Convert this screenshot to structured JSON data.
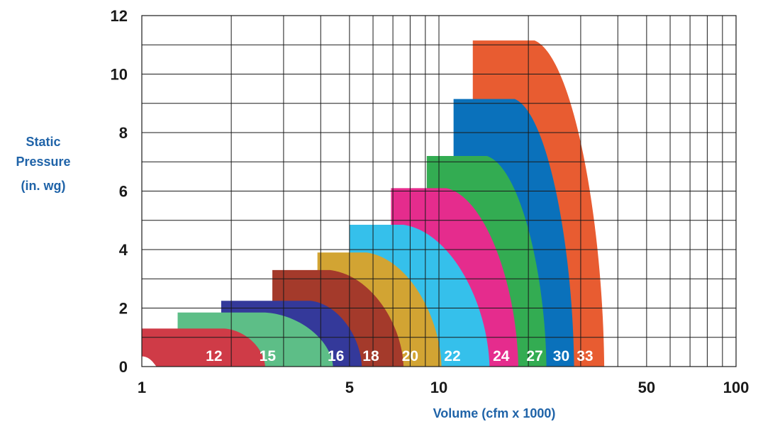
{
  "chart_data": {
    "type": "area",
    "x_scale": "log",
    "xlim": [
      1,
      100
    ],
    "ylim": [
      0,
      12
    ],
    "xlabel": "Volume (cfm x 1000)",
    "ylabel_lines": [
      "Static",
      "Pressure",
      "(in. wg)"
    ],
    "x_ticks": [
      {
        "value": 1,
        "label": "1"
      },
      {
        "value": 5,
        "label": "5"
      },
      {
        "value": 10,
        "label": "10"
      },
      {
        "value": 50,
        "label": "50"
      },
      {
        "value": 100,
        "label": "100"
      }
    ],
    "y_ticks": [
      {
        "value": 0,
        "label": "0"
      },
      {
        "value": 2,
        "label": "2"
      },
      {
        "value": 4,
        "label": "4"
      },
      {
        "value": 6,
        "label": "6"
      },
      {
        "value": 8,
        "label": "8"
      },
      {
        "value": 10,
        "label": "10"
      },
      {
        "value": 12,
        "label": "12"
      }
    ],
    "grid": true,
    "series": [
      {
        "name": "12",
        "color": "#cf3b47",
        "x_start": 1.0,
        "x_shoulder": 1.9,
        "x_max": 2.6,
        "p_max": 1.3,
        "label_x": 1.75
      },
      {
        "name": "15",
        "color": "#5dbe87",
        "x_start": 1.32,
        "x_shoulder": 2.6,
        "x_max": 4.4,
        "p_max": 1.85,
        "label_x": 2.65
      },
      {
        "name": "16",
        "color": "#34399a",
        "x_start": 1.85,
        "x_shoulder": 3.7,
        "x_max": 5.5,
        "p_max": 2.25,
        "label_x": 4.5
      },
      {
        "name": "18",
        "color": "#a43a2b",
        "x_start": 2.75,
        "x_shoulder": 4.3,
        "x_max": 7.6,
        "p_max": 3.3,
        "label_x": 5.9
      },
      {
        "name": "20",
        "color": "#d2a433",
        "x_start": 3.9,
        "x_shoulder": 5.7,
        "x_max": 10.2,
        "p_max": 3.9,
        "label_x": 8.0
      },
      {
        "name": "22",
        "color": "#35c0eb",
        "x_start": 5.0,
        "x_shoulder": 7.6,
        "x_max": 14.8,
        "p_max": 4.85,
        "label_x": 11.1
      },
      {
        "name": "24",
        "color": "#e52c8d",
        "x_start": 6.9,
        "x_shoulder": 10.6,
        "x_max": 18.5,
        "p_max": 6.1,
        "label_x": 16.2
      },
      {
        "name": "27",
        "color": "#33ac52",
        "x_start": 9.1,
        "x_shoulder": 14.5,
        "x_max": 23.0,
        "p_max": 7.2,
        "label_x": 21.0
      },
      {
        "name": "30",
        "color": "#0a71bb",
        "x_start": 11.2,
        "x_shoulder": 18.0,
        "x_max": 28.5,
        "p_max": 9.15,
        "label_x": 25.8
      },
      {
        "name": "33",
        "color": "#e85c31",
        "x_start": 13.0,
        "x_shoulder": 21.0,
        "x_max": 36.0,
        "p_max": 11.15,
        "label_x": 31.0
      }
    ]
  }
}
